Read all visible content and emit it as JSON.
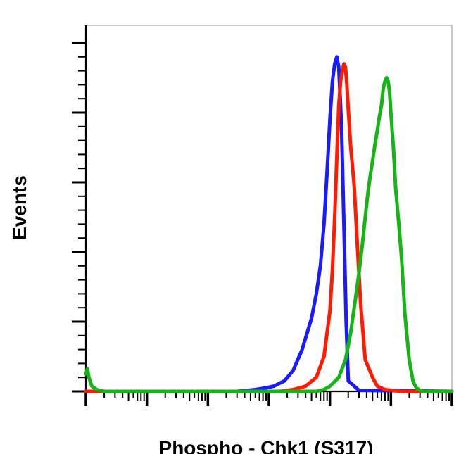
{
  "chart_data": {
    "type": "line",
    "title": "",
    "xlabel": "Phospho - Chk1 (S317)",
    "ylabel": "Events",
    "x_scale": "log",
    "xlim": [
      1,
      1000000
    ],
    "ylim": [
      0,
      100
    ],
    "grid": false,
    "legend": "none",
    "y_major_ticks": [
      0,
      20,
      40,
      60,
      80,
      100
    ],
    "series": [
      {
        "color": "#1a1aff",
        "x": [
          1,
          300,
          600,
          900,
          1200,
          1800,
          2500,
          3500,
          5000,
          6000,
          7000,
          8000,
          9000,
          10000,
          11000,
          12000,
          13000,
          14000,
          15500,
          17000,
          18500,
          20000,
          30000,
          1000000
        ],
        "y": [
          0,
          0,
          0.5,
          1,
          1.5,
          3,
          6,
          12,
          21,
          28,
          36,
          48,
          63,
          78,
          89,
          94,
          96,
          93,
          76,
          48,
          20,
          3,
          0.3,
          0
        ]
      },
      {
        "color": "#ff1a00",
        "x": [
          1,
          1500,
          2500,
          4000,
          6000,
          8000,
          10000,
          11000,
          12000,
          13000,
          14000,
          15000,
          16000,
          17000,
          18000,
          19000,
          20000,
          22000,
          25000,
          28000,
          32000,
          38000,
          45000,
          50000,
          60000,
          80000,
          150000,
          1000000
        ],
        "y": [
          0,
          0,
          0.5,
          1.5,
          4,
          10,
          23,
          35,
          50,
          67,
          82,
          89,
          92,
          94,
          93,
          88,
          81,
          70,
          59,
          43,
          25,
          9,
          6,
          4,
          1.5,
          0.5,
          0,
          0
        ]
      },
      {
        "color": "#16b516",
        "x": [
          1,
          1.06,
          1.12,
          1.25,
          1.5,
          2,
          3,
          6000,
          8000,
          10000,
          14000,
          18000,
          22000,
          26000,
          30000,
          34000,
          38000,
          42000,
          46000,
          50000,
          55000,
          60000,
          65000,
          70000,
          75000,
          80000,
          85000,
          90000,
          95000,
          100000,
          110000,
          120000,
          135000,
          150000,
          170000,
          200000,
          230000,
          260000,
          300000,
          350000,
          400000,
          1000000
        ],
        "y": [
          5,
          6.5,
          4,
          1.5,
          0.5,
          0,
          0,
          0,
          0.5,
          1.5,
          4,
          9,
          17,
          26,
          34,
          42,
          50,
          57,
          62,
          66,
          71,
          75,
          79,
          82,
          87,
          89,
          90,
          89,
          86,
          80,
          70,
          58,
          48,
          38,
          22,
          9,
          3,
          1,
          0.3,
          0,
          0,
          0
        ]
      }
    ]
  }
}
